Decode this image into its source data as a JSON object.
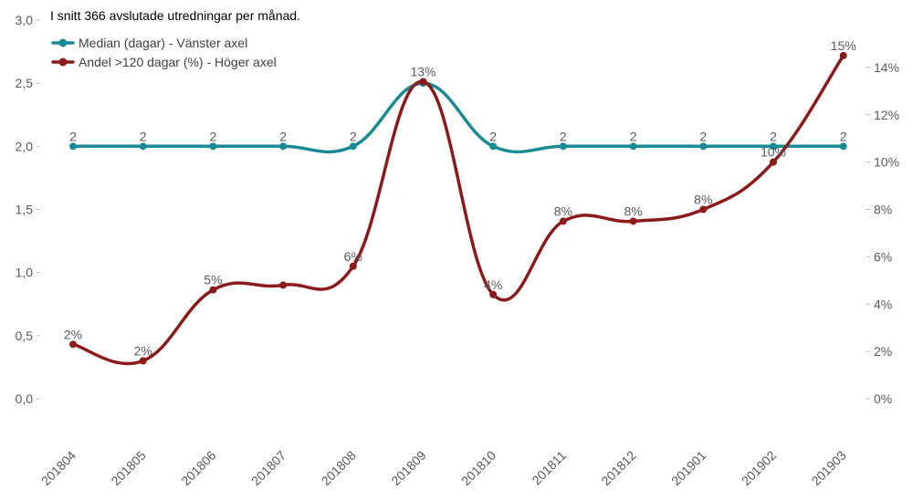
{
  "chart_data": {
    "type": "line",
    "title": "I snitt 366 avslutade utredningar per månad.",
    "categories": [
      "201804",
      "201805",
      "201806",
      "201807",
      "201808",
      "201809",
      "201810",
      "201811",
      "201812",
      "201901",
      "201902",
      "201903"
    ],
    "y_left": {
      "ticks": [
        "0,0",
        "0,5",
        "1,0",
        "1,5",
        "2,0",
        "2,5",
        "3,0"
      ],
      "range": [
        0,
        3
      ]
    },
    "y_right": {
      "ticks": [
        "0%",
        "2%",
        "4%",
        "6%",
        "8%",
        "10%",
        "12%",
        "14%"
      ],
      "range": [
        0,
        16
      ]
    },
    "series": [
      {
        "name": "Median (dagar) - Vänster axel",
        "axis": "left",
        "color": "#1a8a96",
        "values": [
          2,
          2,
          2,
          2,
          2,
          2.5,
          2,
          2,
          2,
          2,
          2,
          2
        ],
        "labels": [
          "2",
          "2",
          "2",
          "2",
          "2",
          "",
          "2",
          "2",
          "2",
          "2",
          "2",
          "2"
        ]
      },
      {
        "name": "Andel >120 dagar (%) - Höger axel",
        "axis": "right",
        "color": "#8b1a1a",
        "values": [
          2.3,
          1.6,
          4.6,
          4.8,
          5.6,
          13.4,
          4.4,
          7.5,
          7.5,
          8.0,
          10.0,
          14.5
        ],
        "labels": [
          "2%",
          "2%",
          "5%",
          "",
          "6%",
          "13%",
          "4%",
          "8%",
          "8%",
          "8%",
          "10%",
          "15%"
        ]
      }
    ],
    "grid": false,
    "legend_position": "top-left"
  }
}
